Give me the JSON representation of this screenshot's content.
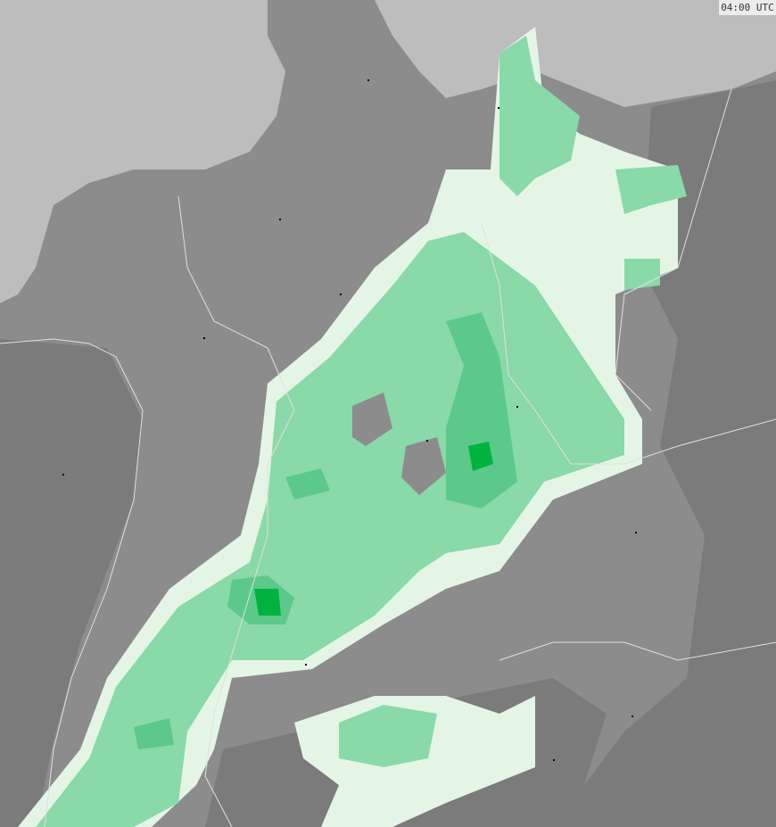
{
  "map": {
    "timestamp": "04:00 UTC",
    "colors": {
      "sea": "#bdbdbd",
      "land": "#8c8c8c",
      "land_dark": "#7a7a7a",
      "precip_trace": "#e4f5e6",
      "precip_light": "#8ad9a9",
      "precip_medium": "#5cc98b",
      "precip_heavy": "#00b33f",
      "borders": "#e0e0e0"
    }
  }
}
